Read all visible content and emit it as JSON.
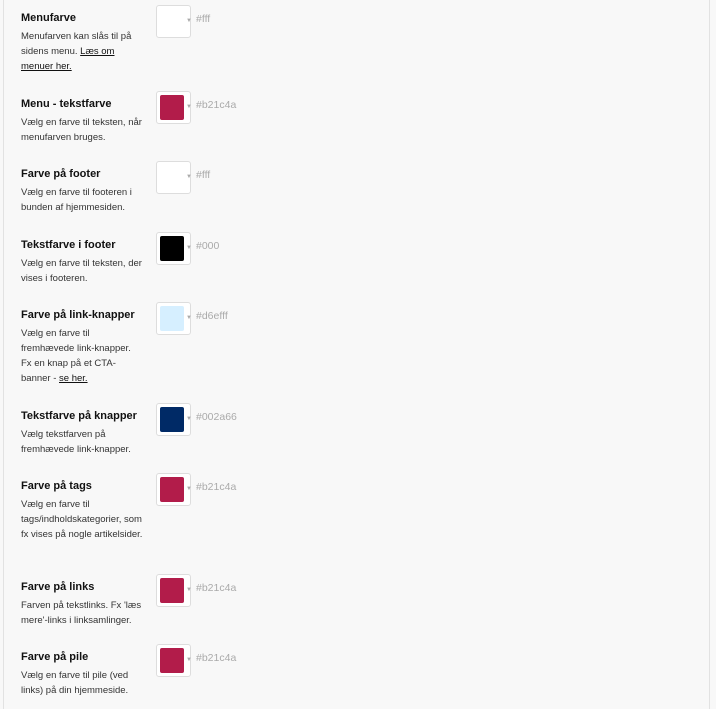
{
  "settings": [
    {
      "title": "Menufarve",
      "desc": "Menufarven kan slås til på sidens menu. ",
      "link": "Læs om menuer her.",
      "color": "#fff",
      "hex": "#fff"
    },
    {
      "title": "Menu - tekstfarve",
      "desc": "Vælg en farve til teksten, når menufarven bruges.",
      "color": "#b21c4a",
      "hex": "#b21c4a"
    },
    {
      "title": "Farve på footer",
      "desc": "Vælg en farve til footeren i bunden af hjemmesiden.",
      "color": "#fff",
      "hex": "#fff"
    },
    {
      "title": "Tekstfarve i footer",
      "desc": "Vælg en farve til teksten, der vises i footeren.",
      "color": "#000",
      "hex": "#000"
    },
    {
      "title": "Farve på link-knapper",
      "desc": "Vælg en farve til fremhævede link-knapper. Fx en knap på et CTA-banner - ",
      "link": "se her.",
      "color": "#d6efff",
      "hex": "#d6efff"
    },
    {
      "title": "Tekstfarve på knapper",
      "desc": "Vælg tekstfarven på fremhævede link-knapper.",
      "color": "#002a66",
      "hex": "#002a66"
    },
    {
      "title": "Farve på tags",
      "desc": "Vælg en farve til tags/indholdskategorier, som fx vises på nogle artikelsider.",
      "color": "#b21c4a",
      "hex": "#b21c4a"
    },
    {
      "title": "Farve på links",
      "desc": "Farven på tekstlinks. Fx 'læs mere'-links i linksamlinger.",
      "color": "#b21c4a",
      "hex": "#b21c4a"
    },
    {
      "title": "Farve på pile",
      "desc": "Vælg en farve til pile (ved links) på din hjemmeside.",
      "color": "#b21c4a",
      "hex": "#b21c4a"
    }
  ]
}
